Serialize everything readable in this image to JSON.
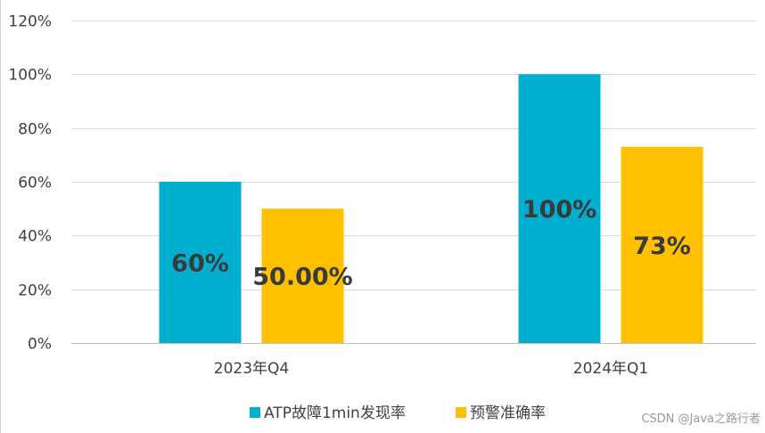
{
  "chart_data": {
    "type": "bar",
    "categories": [
      "2023年Q4",
      "2024年Q1"
    ],
    "series": [
      {
        "name": "ATP故障1min发现率",
        "values": [
          60,
          100
        ],
        "labels": [
          "60%",
          "100%"
        ],
        "color": "#00AFD0"
      },
      {
        "name": "预警准确率",
        "values": [
          50,
          73
        ],
        "labels": [
          "50.00%",
          "73%"
        ],
        "color": "#FFC000"
      }
    ],
    "ylim": [
      0,
      120
    ],
    "yticks": [
      0,
      20,
      40,
      60,
      80,
      100,
      120
    ],
    "ytick_labels": [
      "0%",
      "20%",
      "40%",
      "60%",
      "80%",
      "100%",
      "120%"
    ],
    "grid": true,
    "legend_position": "bottom"
  },
  "watermark": "CSDN @Java之路行者"
}
